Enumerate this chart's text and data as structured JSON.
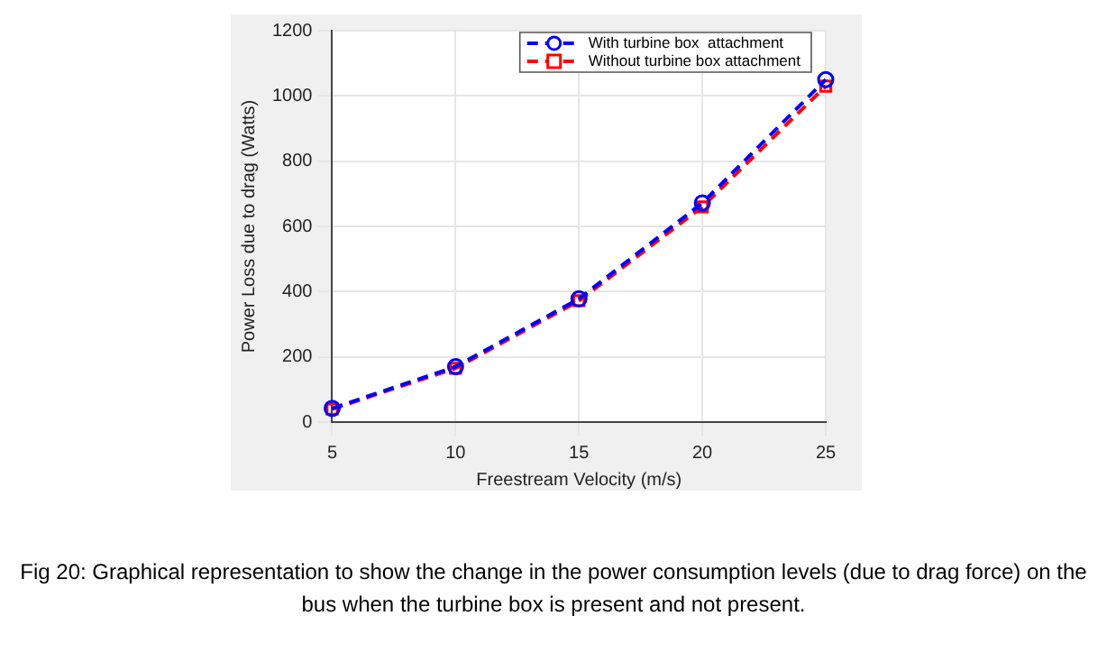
{
  "chart_data": {
    "type": "line",
    "xlabel": "Freestream Velocity (m/s)",
    "ylabel": "Power Loss due to drag (Watts)",
    "x": [
      5,
      10,
      15,
      20,
      25
    ],
    "series": [
      {
        "name": "With turbine box  attachment",
        "color": "#0000ff",
        "marker": "circle",
        "values": [
          42,
          170,
          378,
          672,
          1050
        ]
      },
      {
        "name": "Without turbine box attachment",
        "color": "#ff0000",
        "marker": "square",
        "values": [
          40,
          165,
          372,
          660,
          1030
        ]
      }
    ],
    "xlim": [
      5,
      25
    ],
    "xticks": [
      5,
      10,
      15,
      20,
      25
    ],
    "ylim": [
      0,
      1200
    ],
    "yticks": [
      0,
      200,
      400,
      600,
      800,
      1000,
      1200
    ],
    "grid": true,
    "legend": "top right",
    "line_style": "dashed",
    "annotations": [
      "Fig 20: Graphical representation to show the change in the power consumption levels (due to drag force) on the bus when the turbine box is present and not present."
    ]
  }
}
